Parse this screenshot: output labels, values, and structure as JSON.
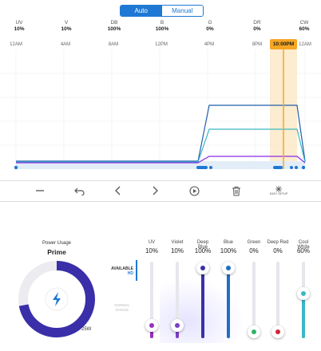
{
  "mode_toggle": {
    "auto_label": "Auto",
    "manual_label": "Manual",
    "selected": "Auto"
  },
  "channels": [
    {
      "name": "UV",
      "value": "10%"
    },
    {
      "name": "V",
      "value": "10%"
    },
    {
      "name": "DB",
      "value": "100%"
    },
    {
      "name": "B",
      "value": "100%"
    },
    {
      "name": "G",
      "value": "0%"
    },
    {
      "name": "DR",
      "value": "0%"
    },
    {
      "name": "CW",
      "value": "60%"
    }
  ],
  "timeline": {
    "labels": [
      "12AM",
      "4AM",
      "8AM",
      "12PM",
      "4PM",
      "8PM",
      "12AM"
    ],
    "current_time": "10:00PM",
    "colors": {
      "uv": "#8a2be2",
      "cool_white": "#3bb8c4",
      "blue": "#1f5fa8",
      "accent": "#f5a623",
      "baseline": "#1e78d4"
    }
  },
  "toolbar": {
    "icons": [
      "minus-icon",
      "undo-icon",
      "chevron-left-icon",
      "chevron-right-icon",
      "play-circle-icon",
      "trash-icon",
      "easy-setup-icon"
    ],
    "easy_setup_label": "EASY SETUP"
  },
  "power": {
    "title": "Power Usage",
    "mode": "Prime",
    "watts": "25W",
    "ring_fraction": 0.72,
    "ring_color": "#3a2fa8"
  },
  "sliders": {
    "available_label": "AVAILABLE",
    "hd_label": "HD",
    "normal_range_label": "NORMAL RANGE",
    "items": [
      {
        "name": "UV",
        "value": "10%",
        "level": 0.1,
        "color": "#9a2fbf"
      },
      {
        "name": "Violet",
        "value": "10%",
        "level": 0.1,
        "color": "#7b3fc4"
      },
      {
        "name": "Deep Blue",
        "value": "100%",
        "level": 1.0,
        "color": "#3a2fa8"
      },
      {
        "name": "Blue",
        "value": "100%",
        "level": 1.0,
        "color": "#1f6fc4"
      },
      {
        "name": "Green",
        "value": "0%",
        "level": 0.0,
        "color": "#2fb36a"
      },
      {
        "name": "Deep Red",
        "value": "0%",
        "level": 0.0,
        "color": "#d0283a"
      },
      {
        "name": "Cool White",
        "value": "60%",
        "level": 0.6,
        "color": "#3bb8c4"
      }
    ]
  }
}
